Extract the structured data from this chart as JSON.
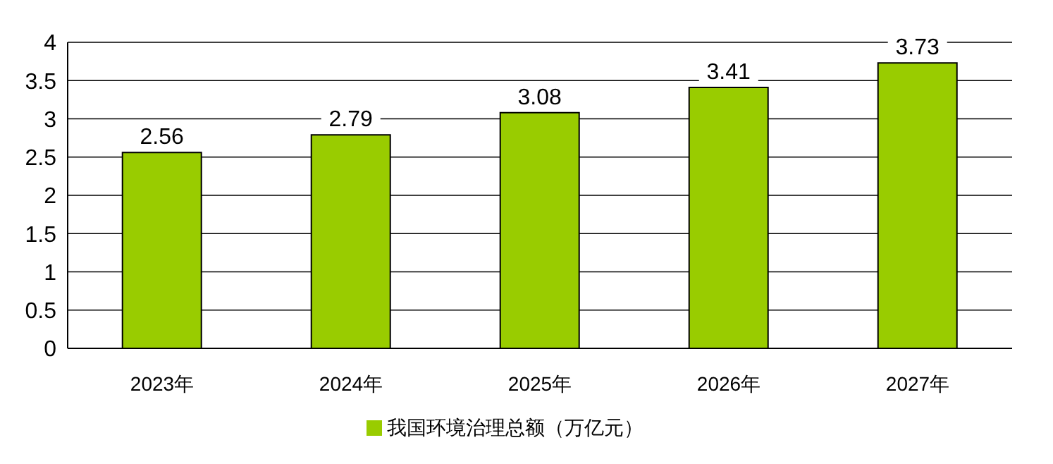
{
  "chart_data": {
    "type": "bar",
    "categories": [
      "2023年",
      "2024年",
      "2025年",
      "2026年",
      "2027年"
    ],
    "series": [
      {
        "name": "我国环境治理总额（万亿元）",
        "color": "#99cc00",
        "values": [
          2.56,
          2.79,
          3.08,
          3.41,
          3.73
        ]
      }
    ],
    "ylim": [
      0,
      4
    ],
    "yticks": [
      0,
      0.5,
      1,
      1.5,
      2,
      2.5,
      3,
      3.5,
      4
    ],
    "grid": "y",
    "legend": "bottom",
    "data_labels": true
  }
}
